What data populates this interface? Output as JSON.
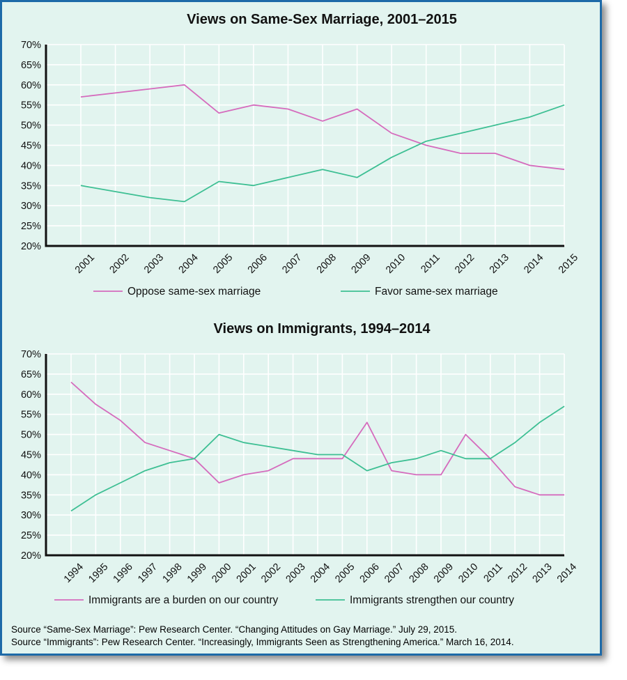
{
  "chart_data": [
    {
      "type": "line",
      "title": "Views on Same-Sex Marriage, 2001–2015",
      "categories": [
        "2001",
        "2002",
        "2003",
        "2004",
        "2005",
        "2006",
        "2007",
        "2008",
        "2009",
        "2010",
        "2011",
        "2012",
        "2013",
        "2014",
        "2015"
      ],
      "y_tick_labels": [
        "20%",
        "25%",
        "30%",
        "35%",
        "40%",
        "45%",
        "50%",
        "55%",
        "60%",
        "65%",
        "70%"
      ],
      "ylim": [
        20,
        70
      ],
      "grid": true,
      "legend_position": "bottom",
      "series": [
        {
          "name": "Oppose same-sex marriage",
          "color": "#d56bbd",
          "values": [
            57,
            58,
            59,
            60,
            53,
            55,
            54,
            51,
            54,
            48,
            45,
            43,
            43,
            40,
            39
          ]
        },
        {
          "name": "Favor same-sex marriage",
          "color": "#3dbf93",
          "values": [
            35,
            33.5,
            32,
            31,
            36,
            35,
            37,
            39,
            37,
            42,
            46,
            48,
            50,
            52,
            55
          ]
        }
      ]
    },
    {
      "type": "line",
      "title": "Views on Immigrants, 1994–2014",
      "categories": [
        "1994",
        "1995",
        "1996",
        "1997",
        "1998",
        "1999",
        "2000",
        "2001",
        "2002",
        "2003",
        "2004",
        "2005",
        "2006",
        "2007",
        "2008",
        "2009",
        "2010",
        "2011",
        "2012",
        "2013",
        "2014"
      ],
      "y_tick_labels": [
        "20%",
        "25%",
        "30%",
        "35%",
        "40%",
        "45%",
        "50%",
        "55%",
        "60%",
        "65%",
        "70%"
      ],
      "ylim": [
        20,
        70
      ],
      "grid": true,
      "legend_position": "bottom",
      "series": [
        {
          "name": "Immigrants are a burden on our country",
          "color": "#d56bbd",
          "values": [
            63,
            57.5,
            53.5,
            48,
            46,
            44,
            38,
            40,
            41,
            44,
            44,
            44,
            53,
            41,
            40,
            40,
            50,
            44,
            37,
            35,
            35
          ]
        },
        {
          "name": "Immigrants strengthen our country",
          "color": "#3dbf93",
          "values": [
            31,
            35,
            38,
            41,
            43,
            44,
            50,
            48,
            47,
            46,
            45,
            45,
            41,
            43,
            44,
            46,
            44,
            44,
            48,
            53,
            57
          ]
        }
      ]
    }
  ],
  "sources": [
    "Source “Same-Sex Marriage”: Pew Research Center. “Changing Attitudes on Gay Marriage.” July 29, 2015.",
    "Source “Immigrants”: Pew Research Center. “Increasingly, Immigrants Seen as Strengthening America.” March 16, 2014."
  ]
}
